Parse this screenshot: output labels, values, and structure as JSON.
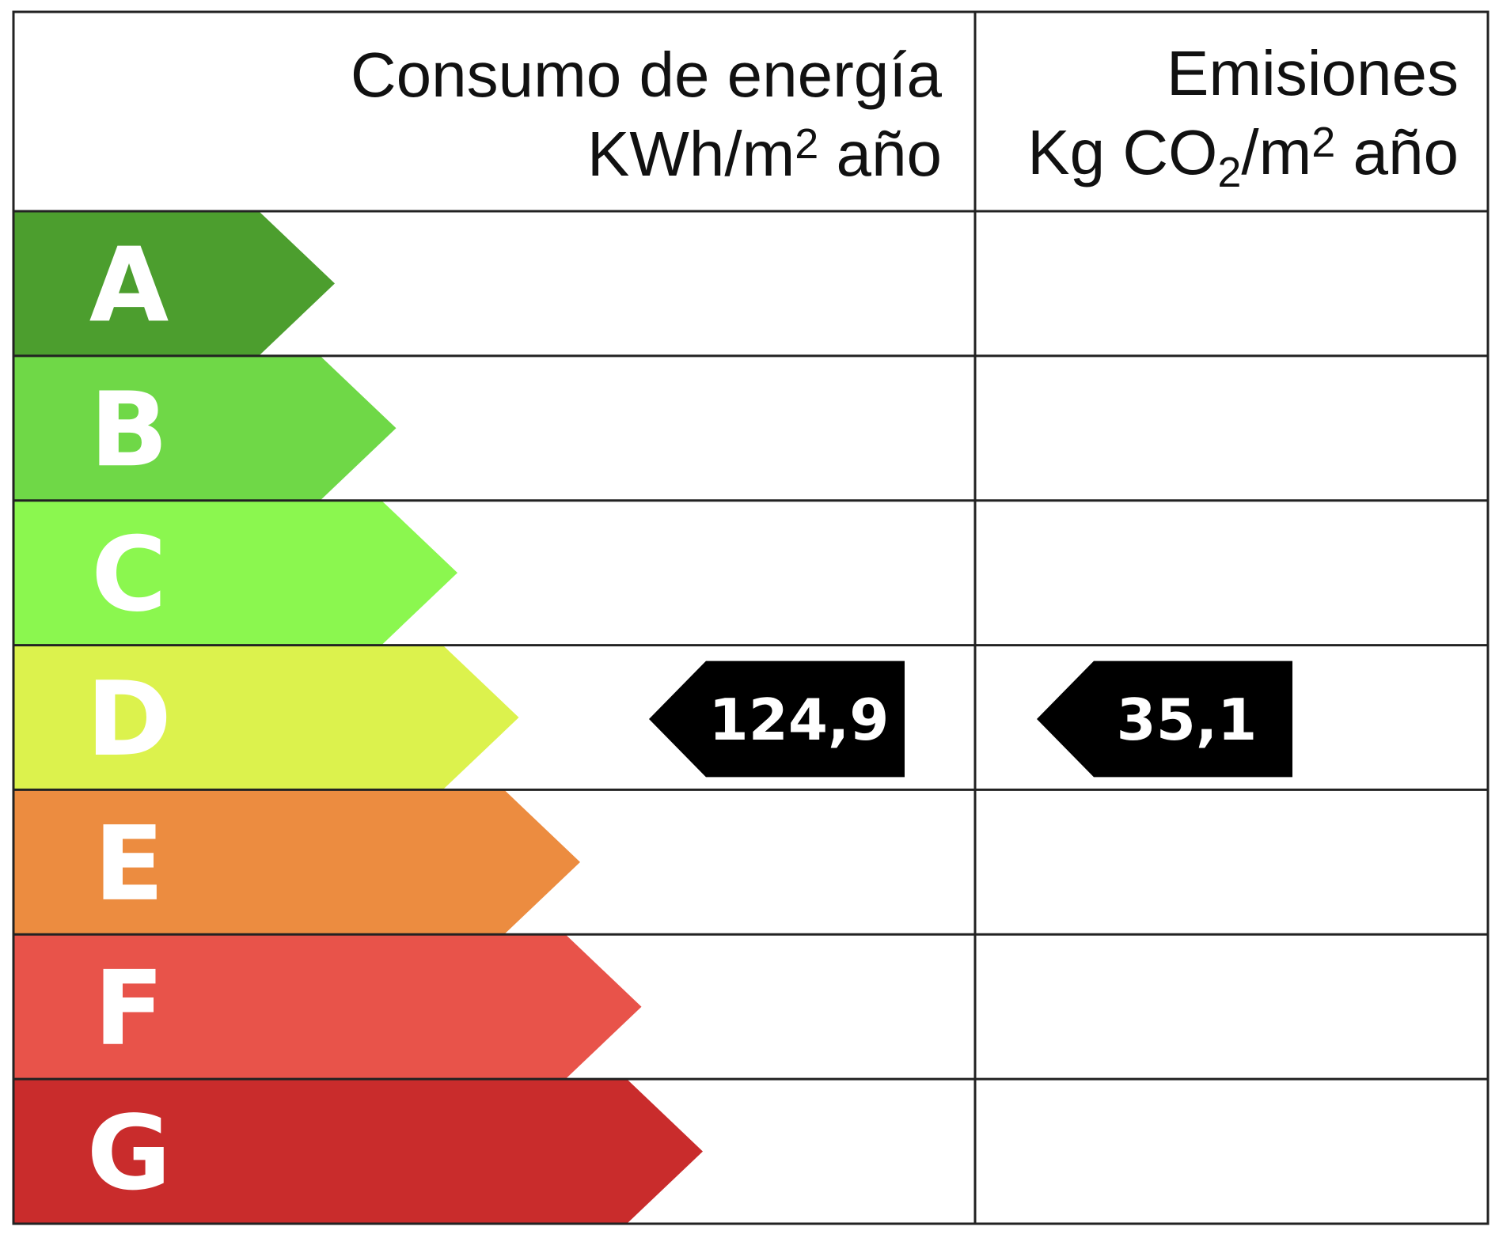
{
  "header": {
    "energy_title": "Consumo de energía",
    "energy_unit_prefix": "KWh/m",
    "energy_unit_exp": "2",
    "energy_unit_suffix": " año",
    "emissions_title": "Emisiones",
    "emissions_unit_prefix": "Kg CO",
    "emissions_unit_sub": "2",
    "emissions_unit_mid": "/m",
    "emissions_unit_exp": "2",
    "emissions_unit_suffix": " año"
  },
  "chart_data": {
    "type": "table",
    "classes": [
      {
        "letter": "A",
        "color": "#4c9e2e"
      },
      {
        "letter": "B",
        "color": "#6fd847"
      },
      {
        "letter": "C",
        "color": "#8bf74f"
      },
      {
        "letter": "D",
        "color": "#dcf24d"
      },
      {
        "letter": "E",
        "color": "#ec8c40"
      },
      {
        "letter": "F",
        "color": "#e8534a"
      },
      {
        "letter": "G",
        "color": "#c92c2c"
      }
    ],
    "energy": {
      "value": "124,9",
      "class": "D"
    },
    "emissions": {
      "value": "35,1",
      "class": "D"
    },
    "indicator_color": "#000000"
  }
}
